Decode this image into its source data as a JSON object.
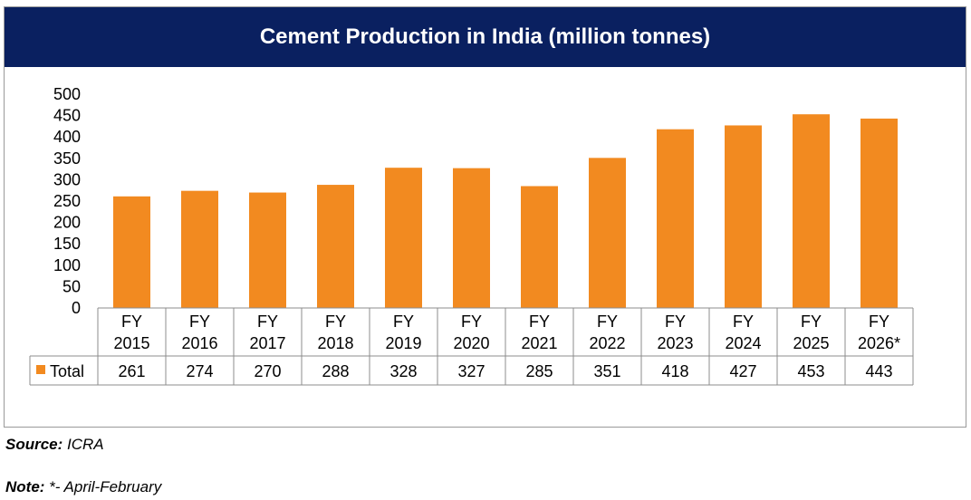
{
  "chart_data": {
    "type": "bar",
    "title": "Cement Production in India (million tonnes)",
    "categories": [
      [
        "FY",
        "2015"
      ],
      [
        "FY",
        "2016"
      ],
      [
        "FY",
        "2017"
      ],
      [
        "FY",
        "2018"
      ],
      [
        "FY",
        "2019"
      ],
      [
        "FY",
        "2020"
      ],
      [
        "FY",
        "2021"
      ],
      [
        "FY",
        "2022"
      ],
      [
        "FY",
        "2023"
      ],
      [
        "FY",
        "2024"
      ],
      [
        "FY",
        "2025"
      ],
      [
        "FY",
        "2026*"
      ]
    ],
    "series": [
      {
        "name": "Total",
        "values": [
          261,
          274,
          270,
          288,
          328,
          327,
          285,
          351,
          418,
          427,
          453,
          443
        ],
        "color": "#f28a20"
      }
    ],
    "yticks": [
      "0",
      "50",
      "100",
      "150",
      "200",
      "250",
      "300",
      "350",
      "400",
      "450",
      "500"
    ],
    "ylim": [
      0,
      500
    ],
    "grid": false,
    "legend": "data-table",
    "data_table": true
  },
  "header_color": "#0a2060",
  "footer": {
    "source_label": "Source:",
    "source_value": " ICRA",
    "note_label": "Note:",
    "note_value": " *- April-February"
  }
}
